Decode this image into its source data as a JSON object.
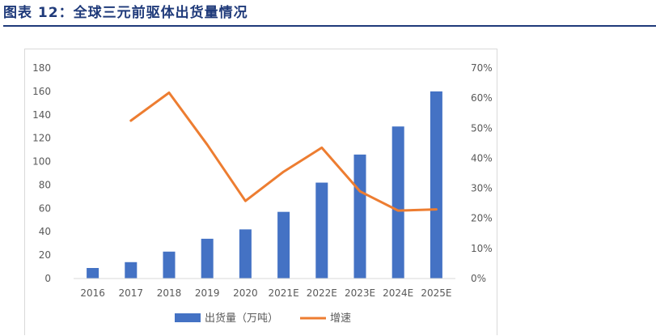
{
  "figure": {
    "title": "图表 12：全球三元前驱体出货量情况",
    "title_color": "#1f3a7a",
    "rule_color": "#1f3a7a"
  },
  "chart_data": {
    "type": "bar",
    "categories": [
      "2016",
      "2017",
      "2018",
      "2019",
      "2020",
      "2021E",
      "2022E",
      "2023E",
      "2024E",
      "2025E"
    ],
    "series": [
      {
        "name": "出货量（万吨）",
        "type": "bar",
        "axis": "left",
        "color": "#4472c4",
        "values": [
          9,
          14,
          23,
          34,
          42,
          57,
          82,
          106,
          130,
          160
        ]
      },
      {
        "name": "增速",
        "type": "line",
        "axis": "right",
        "color": "#ed7d31",
        "values": [
          null,
          52.5,
          61.8,
          44.5,
          25.8,
          35.5,
          43.5,
          29.0,
          22.6,
          23.0
        ]
      }
    ],
    "y_left": {
      "min": 0,
      "max": 180,
      "ticks": [
        0,
        20,
        40,
        60,
        80,
        100,
        120,
        140,
        160,
        180
      ]
    },
    "y_right": {
      "min": 0,
      "max": 70,
      "ticks": [
        "0%",
        "10%",
        "20%",
        "30%",
        "40%",
        "50%",
        "60%",
        "70%"
      ]
    },
    "grid": false,
    "legend_position": "bottom"
  }
}
